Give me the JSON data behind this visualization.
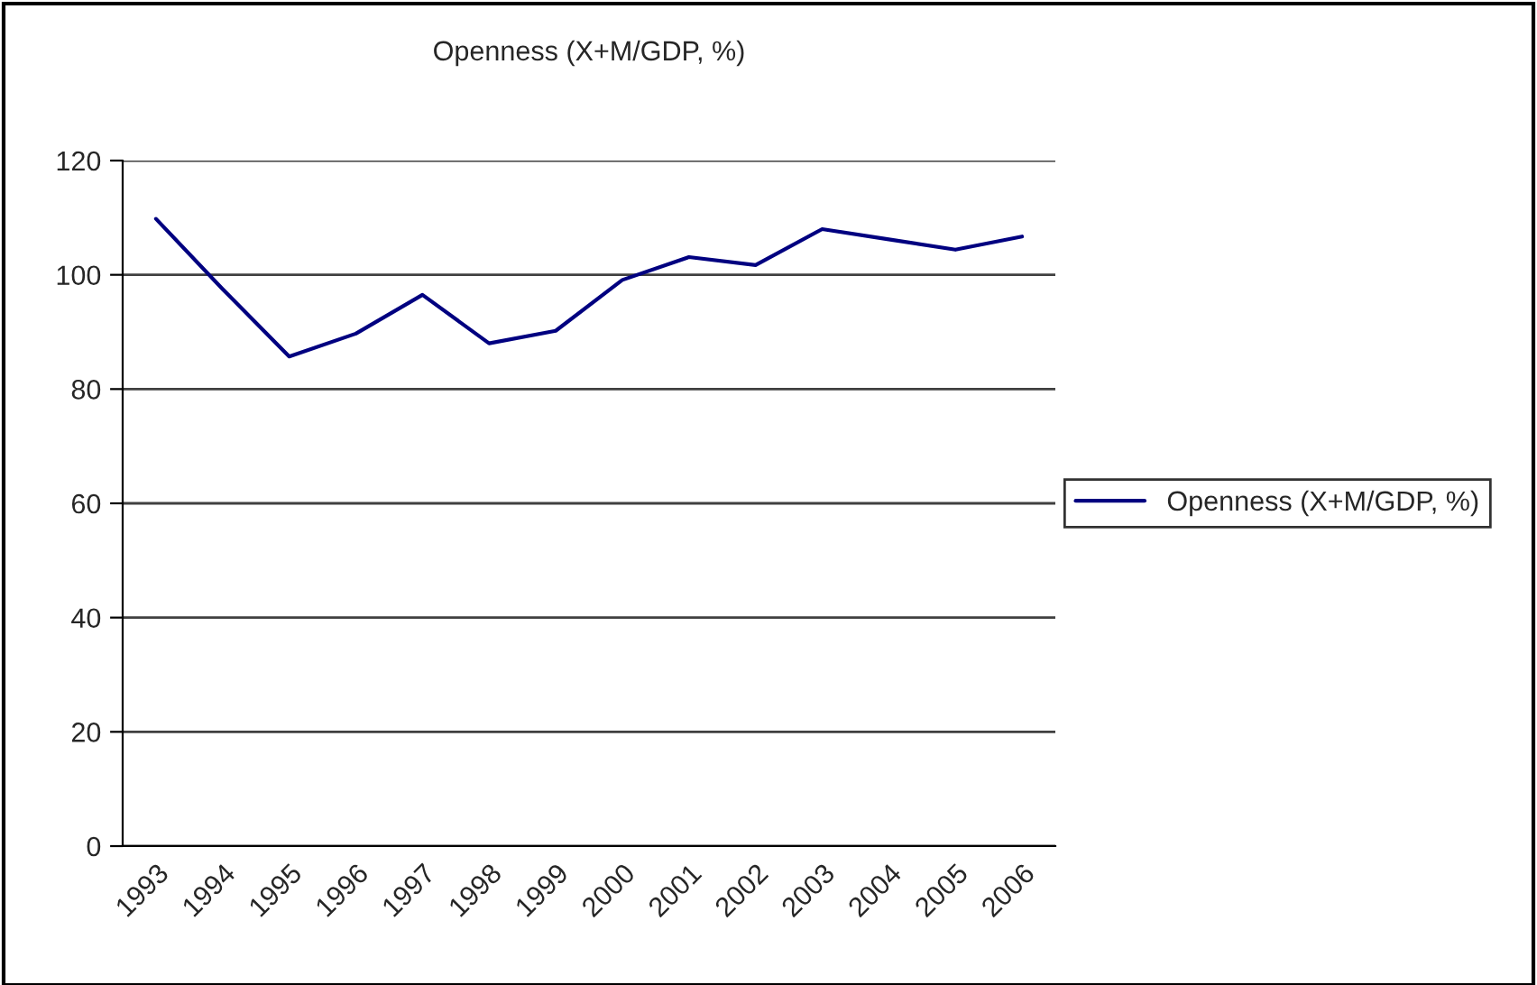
{
  "chart_data": {
    "type": "line",
    "title": "Openness (X+M/GDP, %)",
    "categories": [
      "1993",
      "1994",
      "1995",
      "1996",
      "1997",
      "1998",
      "1999",
      "2000",
      "2001",
      "2002",
      "2003",
      "2004",
      "2005",
      "2006"
    ],
    "series": [
      {
        "name": "Openness (X+M/GDP, %)",
        "color": "#000080",
        "values": [
          109.8,
          97.5,
          85.7,
          89.7,
          96.5,
          88,
          90.2,
          99.1,
          103.1,
          101.7,
          108,
          106.2,
          104.4,
          106.7
        ]
      }
    ],
    "ylim": [
      0,
      120
    ],
    "yticks": [
      0,
      20,
      40,
      60,
      80,
      100,
      120
    ],
    "grid": "y",
    "legend": "right",
    "marker": "none",
    "line_style": "solid"
  }
}
